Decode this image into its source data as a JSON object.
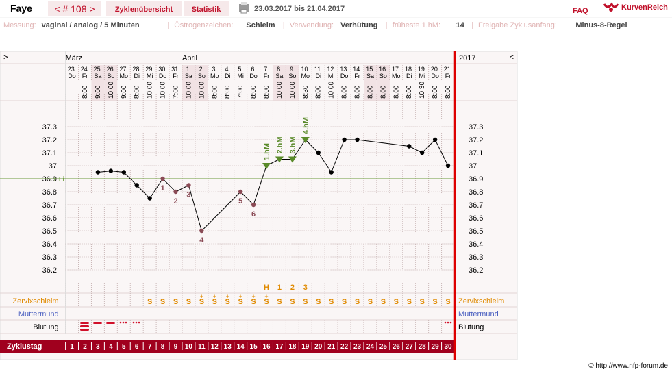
{
  "header": {
    "name": "Faye",
    "cycle": "< # 108 >",
    "tabs": [
      "Zyklenübersicht",
      "Statistik"
    ],
    "period": "23.03.2017 bis 21.04.2017",
    "faq": "FAQ",
    "brand": "KurvenReich"
  },
  "info": {
    "separator": "|",
    "items": [
      {
        "label": "Messung:",
        "value": "vaginal / analog / 5 Minuten"
      },
      {
        "label": "Östrogenzeichen:",
        "value": "Schleim"
      },
      {
        "label": "Verwendung:",
        "value": "Verhütung"
      },
      {
        "label": "früheste 1.hM:",
        "value": "14"
      },
      {
        "label": "Freigabe Zyklusanfang:",
        "value": "Minus-8-Regel"
      }
    ]
  },
  "chart_data": {
    "type": "line",
    "nav_left": ">",
    "nav_right": "<",
    "year": "2017",
    "months": [
      null,
      null,
      null,
      null,
      null,
      null,
      null,
      null,
      null,
      "April",
      null,
      null,
      null,
      null,
      null,
      null,
      null,
      null,
      null,
      null,
      null,
      null,
      null,
      null,
      null,
      null,
      null,
      null,
      null,
      null
    ],
    "month_first": "März",
    "dates": [
      "23.",
      "24.",
      "25.",
      "26.",
      "27.",
      "28.",
      "29.",
      "30.",
      "31.",
      "1.",
      "2.",
      "3.",
      "4.",
      "5.",
      "6.",
      "7.",
      "8.",
      "9.",
      "10.",
      "11.",
      "12.",
      "13.",
      "14.",
      "15.",
      "16.",
      "17.",
      "18.",
      "19.",
      "20.",
      "21."
    ],
    "weekdays": [
      "Do",
      "Fr",
      "Sa",
      "So",
      "Mo",
      "Di",
      "Mi",
      "Do",
      "Fr",
      "Sa",
      "So",
      "Mo",
      "Di",
      "Mi",
      "Do",
      "Fr",
      "Sa",
      "So",
      "Mo",
      "Di",
      "Mi",
      "Do",
      "Fr",
      "Sa",
      "So",
      "Mo",
      "Di",
      "Mi",
      "Do",
      "Fr"
    ],
    "weekend": [
      false,
      false,
      true,
      true,
      false,
      false,
      false,
      false,
      false,
      true,
      true,
      false,
      false,
      false,
      false,
      false,
      true,
      true,
      false,
      false,
      false,
      false,
      false,
      true,
      true,
      false,
      false,
      false,
      false,
      false
    ],
    "times": [
      null,
      "8:00",
      "9:00",
      "10:00",
      "9:00",
      "8:00",
      "10:00",
      "10:00",
      "7:00",
      "10:00",
      "10:00",
      "8:00",
      "8:00",
      "7:00",
      "8:00",
      "8:00",
      "10:00",
      "10:00",
      "8:30",
      "8:00",
      "10:00",
      "8:00",
      "8:00",
      "8:00",
      "8:00",
      "8:00",
      "8:00",
      "10:30",
      "8:00",
      "8:00"
    ],
    "values": [
      null,
      null,
      36.95,
      36.96,
      36.95,
      36.85,
      36.75,
      36.9,
      36.8,
      36.85,
      36.5,
      null,
      null,
      36.8,
      36.7,
      37.0,
      37.05,
      37.05,
      37.2,
      37.1,
      36.95,
      37.2,
      37.2,
      null,
      null,
      null,
      37.15,
      37.1,
      37.2,
      37.0
    ],
    "point_labels": [
      null,
      null,
      null,
      null,
      null,
      null,
      null,
      "1",
      "2",
      "3",
      "4",
      null,
      null,
      "5",
      "6",
      null,
      null,
      null,
      null,
      null,
      null,
      null,
      null,
      null,
      null,
      null,
      null,
      null,
      null,
      null
    ],
    "hm_labels": [
      null,
      null,
      null,
      null,
      null,
      null,
      null,
      null,
      null,
      null,
      null,
      null,
      null,
      null,
      null,
      "1.hM",
      "2.hM",
      "3.hM",
      "4.hM",
      null,
      null,
      null,
      null,
      null,
      null,
      null,
      null,
      null,
      null,
      null
    ],
    "hl": {
      "label": "HLi",
      "value": 36.9,
      "color": "#6a9a3a"
    },
    "ylim": [
      36.0,
      37.5
    ],
    "yticks": [
      36.2,
      36.3,
      36.4,
      36.5,
      36.6,
      36.7,
      36.8,
      36.9,
      37,
      37.1,
      37.2,
      37.3
    ],
    "markers": [
      null,
      null,
      null,
      null,
      null,
      null,
      null,
      null,
      null,
      null,
      null,
      null,
      null,
      null,
      null,
      "H",
      "1",
      "2",
      "3",
      null,
      null,
      null,
      null,
      null,
      null,
      null,
      null,
      null,
      null,
      null
    ],
    "zervix_label": "Zervixschleim",
    "muttermund_label": "Muttermund",
    "blutung_label": "Blutung",
    "zervix": [
      null,
      null,
      null,
      null,
      null,
      null,
      "S",
      "S",
      "S",
      "S",
      "S",
      "S",
      "S",
      "S",
      "S",
      "S",
      "S",
      "S",
      "S",
      "S",
      "S",
      "S",
      "S",
      "S",
      "S",
      "S",
      "S",
      "S",
      "S",
      "S"
    ],
    "zervix_plus": [
      null,
      null,
      null,
      null,
      null,
      null,
      null,
      null,
      null,
      null,
      "+",
      "+",
      "+",
      "+",
      "+",
      "+",
      null,
      null,
      null,
      null,
      null,
      null,
      null,
      null,
      null,
      null,
      null,
      null,
      null,
      null
    ],
    "cycle_label": "Zyklustag",
    "cycle_days": [
      1,
      2,
      3,
      4,
      5,
      6,
      7,
      8,
      9,
      10,
      11,
      12,
      13,
      14,
      15,
      16,
      17,
      18,
      19,
      20,
      21,
      22,
      23,
      24,
      25,
      26,
      27,
      28,
      29,
      30
    ]
  },
  "footer": "© http://www.nfp-forum.de"
}
